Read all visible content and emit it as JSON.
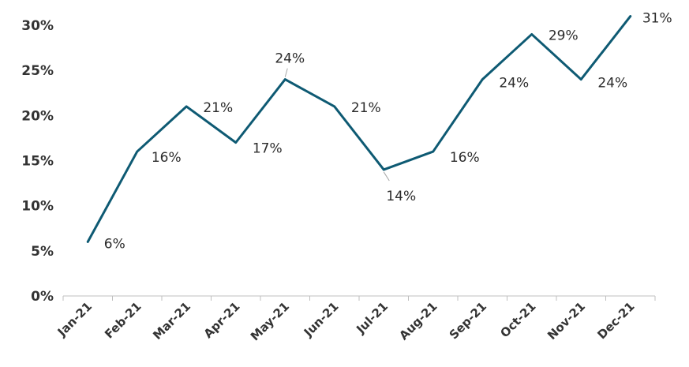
{
  "chart_data": {
    "type": "line",
    "categories": [
      "Jan-21",
      "Feb-21",
      "Mar-21",
      "Apr-21",
      "May-21",
      "Jun-21",
      "Jul-21",
      "Aug-21",
      "Sep-21",
      "Oct-21",
      "Nov-21",
      "Dec-21"
    ],
    "series": [
      {
        "values": [
          6,
          16,
          21,
          17,
          24,
          21,
          14,
          16,
          24,
          29,
          24,
          31
        ]
      }
    ],
    "data_labels": [
      "6%",
      "16%",
      "21%",
      "17%",
      "24%",
      "21%",
      "14%",
      "16%",
      "24%",
      "29%",
      "24%",
      "31%"
    ],
    "yticks": [
      0,
      5,
      10,
      15,
      20,
      25,
      30
    ],
    "ytick_labels": [
      "0%",
      "5%",
      "10%",
      "15%",
      "20%",
      "25%",
      "30%"
    ],
    "ylim": [
      0,
      30
    ],
    "grid": false,
    "legend": "none",
    "line_color": "#0e5a73"
  }
}
